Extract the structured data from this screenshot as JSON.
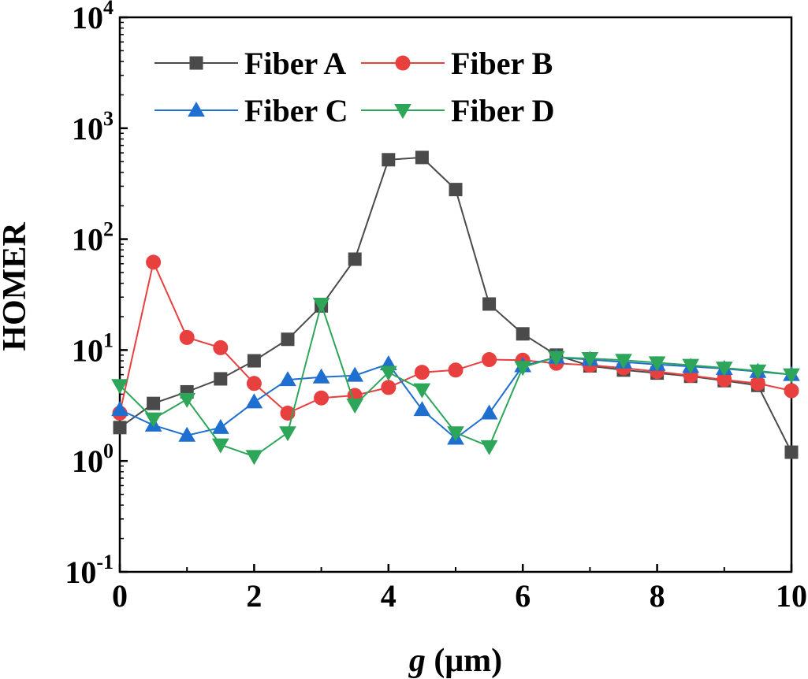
{
  "chart_data": {
    "type": "line",
    "xlabel_var": "g",
    "xlabel_unit": " (μm)",
    "ylabel": "HOMER",
    "xlim": [
      0,
      10
    ],
    "ylim": [
      0.1,
      10000
    ],
    "yscale": "log",
    "grid": false,
    "legend_position": "top-left",
    "x_ticks": [
      "0",
      "2",
      "4",
      "6",
      "8",
      "10"
    ],
    "y_ticks": [
      {
        "base": "10",
        "exp": "-1",
        "value": 0.1
      },
      {
        "base": "10",
        "exp": "0",
        "value": 1
      },
      {
        "base": "10",
        "exp": "1",
        "value": 10
      },
      {
        "base": "10",
        "exp": "2",
        "value": 100
      },
      {
        "base": "10",
        "exp": "3",
        "value": 1000
      },
      {
        "base": "10",
        "exp": "4",
        "value": 10000
      }
    ],
    "x": [
      0,
      0.5,
      1,
      1.5,
      2,
      2.5,
      3,
      3.5,
      4,
      4.5,
      5,
      5.5,
      6,
      6.5,
      7,
      7.5,
      8,
      8.5,
      9,
      9.5,
      10
    ],
    "series": [
      {
        "name": "Fiber A",
        "color": "#4a4a4a",
        "marker": "square",
        "values": [
          2.0,
          3.3,
          4.2,
          5.5,
          8.0,
          12.5,
          25,
          66,
          520,
          545,
          280,
          26,
          14,
          9.0,
          7.2,
          6.6,
          6.2,
          5.8,
          5.3,
          4.8,
          1.2
        ]
      },
      {
        "name": "Fiber B",
        "color": "#e8403f",
        "marker": "circle",
        "values": [
          2.7,
          62,
          13,
          10.5,
          5.0,
          2.7,
          3.7,
          3.9,
          4.6,
          6.3,
          6.6,
          8.2,
          8.1,
          7.6,
          7.3,
          6.9,
          6.4,
          5.9,
          5.4,
          5.0,
          4.3
        ]
      },
      {
        "name": "Fiber C",
        "color": "#1f6fd1",
        "marker": "triangle-up",
        "values": [
          2.9,
          2.1,
          1.7,
          2.0,
          3.4,
          5.4,
          5.7,
          5.9,
          7.5,
          2.9,
          1.6,
          2.7,
          7.2,
          8.6,
          8.2,
          7.8,
          7.4,
          7.1,
          6.8,
          6.4,
          6.0
        ]
      },
      {
        "name": "Fiber D",
        "color": "#2ea65a",
        "marker": "triangle-down",
        "values": [
          4.8,
          2.4,
          3.6,
          1.4,
          1.1,
          1.8,
          26,
          3.2,
          6.3,
          4.4,
          1.8,
          1.35,
          7.0,
          8.6,
          8.4,
          8.1,
          7.7,
          7.3,
          6.9,
          6.5,
          6.0
        ]
      }
    ]
  }
}
